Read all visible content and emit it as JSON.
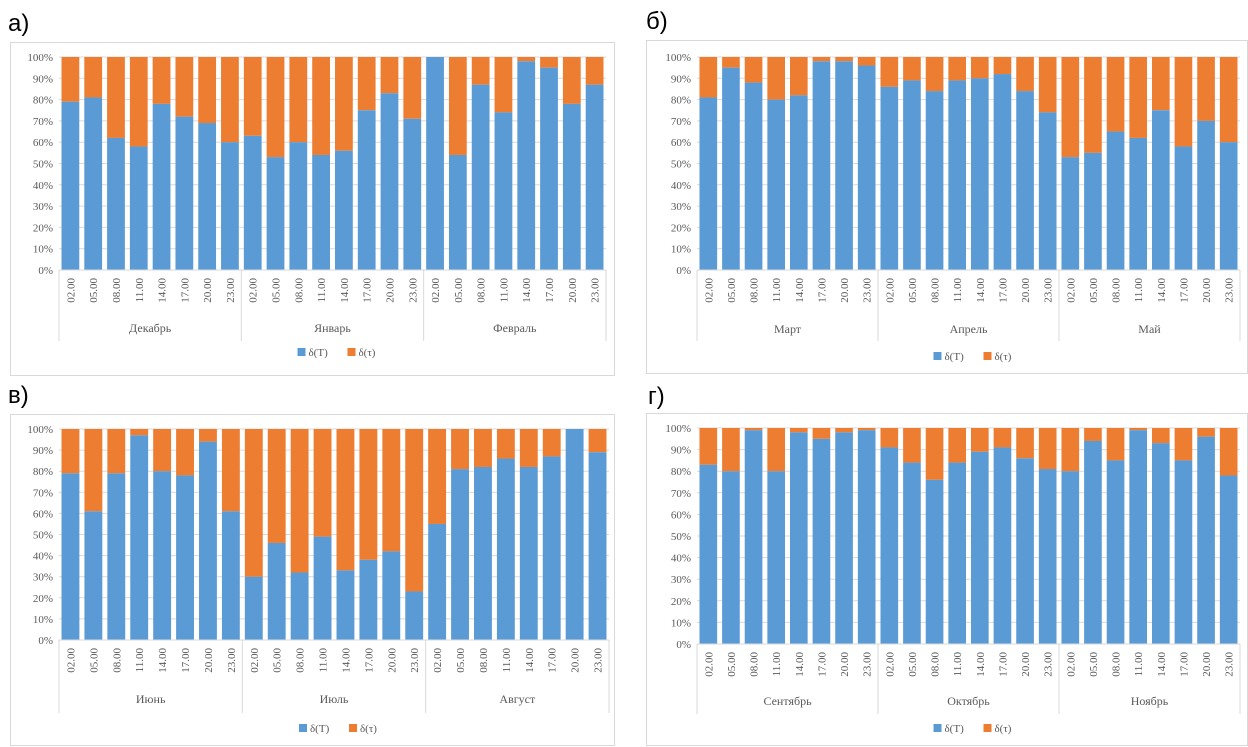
{
  "colors": {
    "series1": "#5b9bd5",
    "series2": "#ed7d31",
    "grid": "#d9d9d9",
    "axis_text": "#595959"
  },
  "legend": [
    "δ(T)",
    "δ(τ)"
  ],
  "y_ticks": [
    "0%",
    "10%",
    "20%",
    "30%",
    "40%",
    "50%",
    "60%",
    "70%",
    "80%",
    "90%",
    "100%"
  ],
  "hours": [
    "02.00",
    "05.00",
    "08.00",
    "11.00",
    "14.00",
    "17.00",
    "20.00",
    "23.00"
  ],
  "chart_data": [
    {
      "panel": "а)",
      "type": "bar",
      "stacked": "percent",
      "categories": [
        "Декабрь",
        "Январь",
        "Февраль"
      ],
      "series": [
        {
          "name": "δ(T)",
          "values": [
            [
              79,
              81,
              62,
              58,
              78,
              72,
              69,
              60
            ],
            [
              63,
              53,
              60,
              54,
              56,
              75,
              83,
              71
            ],
            [
              100,
              54,
              87,
              74,
              98,
              95,
              78,
              87
            ]
          ]
        },
        {
          "name": "δ(τ)",
          "values": [
            [
              21,
              19,
              38,
              42,
              22,
              28,
              31,
              40
            ],
            [
              37,
              47,
              40,
              46,
              44,
              25,
              17,
              29
            ],
            [
              0,
              46,
              13,
              26,
              2,
              5,
              22,
              13
            ]
          ]
        }
      ],
      "ylim": [
        0,
        100
      ]
    },
    {
      "panel": "б)",
      "type": "bar",
      "stacked": "percent",
      "categories": [
        "Март",
        "Апрель",
        "Май"
      ],
      "series": [
        {
          "name": "δ(T)",
          "values": [
            [
              81,
              95,
              88,
              80,
              82,
              98,
              98,
              96
            ],
            [
              86,
              89,
              84,
              89,
              90,
              92,
              84,
              74
            ],
            [
              53,
              55,
              65,
              62,
              75,
              58,
              70,
              60
            ]
          ]
        },
        {
          "name": "δ(τ)",
          "values": [
            [
              19,
              5,
              12,
              20,
              18,
              2,
              2,
              4
            ],
            [
              14,
              11,
              16,
              11,
              10,
              8,
              16,
              26
            ],
            [
              47,
              45,
              35,
              38,
              25,
              42,
              30,
              40
            ]
          ]
        }
      ],
      "ylim": [
        0,
        100
      ]
    },
    {
      "panel": "в)",
      "type": "bar",
      "stacked": "percent",
      "categories": [
        "Июнь",
        "Июль",
        "Август"
      ],
      "series": [
        {
          "name": "δ(T)",
          "values": [
            [
              79,
              61,
              79,
              97,
              80,
              78,
              94,
              61
            ],
            [
              30,
              46,
              32,
              49,
              33,
              38,
              42,
              23
            ],
            [
              55,
              81,
              82,
              86,
              82,
              87,
              100,
              89
            ]
          ]
        },
        {
          "name": "δ(τ)",
          "values": [
            [
              21,
              39,
              21,
              3,
              20,
              22,
              6,
              39
            ],
            [
              70,
              54,
              68,
              51,
              67,
              62,
              58,
              77
            ],
            [
              45,
              19,
              18,
              14,
              18,
              13,
              0,
              11
            ]
          ]
        }
      ],
      "ylim": [
        0,
        100
      ]
    },
    {
      "panel": "г)",
      "type": "bar",
      "stacked": "percent",
      "categories": [
        "Сентябрь",
        "Октябрь",
        "Ноябрь"
      ],
      "series": [
        {
          "name": "δ(T)",
          "values": [
            [
              83,
              80,
              99,
              80,
              98,
              95,
              98,
              99
            ],
            [
              91,
              84,
              76,
              84,
              89,
              91,
              86,
              81
            ],
            [
              80,
              94,
              85,
              99,
              93,
              85,
              96,
              78
            ]
          ]
        },
        {
          "name": "δ(τ)",
          "values": [
            [
              17,
              20,
              1,
              20,
              2,
              5,
              2,
              1
            ],
            [
              9,
              16,
              24,
              16,
              11,
              9,
              14,
              19
            ],
            [
              20,
              6,
              15,
              1,
              7,
              15,
              4,
              22
            ]
          ]
        }
      ],
      "ylim": [
        0,
        100
      ]
    }
  ]
}
